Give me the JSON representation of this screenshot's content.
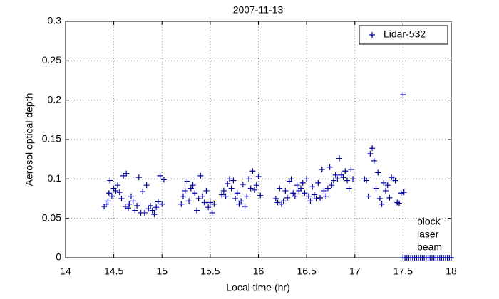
{
  "chart_data": {
    "type": "scatter",
    "title": "2007-11-13",
    "xlabel": "Local time (hr)",
    "ylabel": "Aerosol optical depth",
    "annotations": [
      "block",
      "laser",
      "beam"
    ],
    "xlim": [
      14,
      18
    ],
    "xticks": [
      14,
      14.5,
      15,
      15.5,
      16,
      16.5,
      17,
      17.5,
      18
    ],
    "ylim": [
      0,
      0.3
    ],
    "yticks": [
      0,
      0.05,
      0.1,
      0.15,
      0.2,
      0.25,
      0.3
    ],
    "grid": true,
    "legend": "upper right",
    "marker": "+",
    "series": [
      {
        "name": "Lidar-532",
        "color": "#0000a0",
        "x": [
          14.4,
          14.42,
          14.44,
          14.45,
          14.46,
          14.48,
          14.5,
          14.52,
          14.54,
          14.56,
          14.58,
          14.6,
          14.62,
          14.63,
          14.65,
          14.66,
          14.68,
          14.7,
          14.72,
          14.74,
          14.76,
          14.78,
          14.8,
          14.82,
          14.84,
          14.86,
          14.88,
          14.9,
          14.92,
          14.94,
          14.96,
          14.98,
          15.0,
          15.02,
          15.2,
          15.22,
          15.24,
          15.26,
          15.28,
          15.3,
          15.32,
          15.34,
          15.36,
          15.38,
          15.4,
          15.42,
          15.44,
          15.46,
          15.48,
          15.5,
          15.52,
          15.54,
          15.62,
          15.64,
          15.66,
          15.68,
          15.7,
          15.72,
          15.74,
          15.76,
          15.78,
          15.8,
          15.82,
          15.84,
          15.86,
          15.88,
          15.9,
          15.92,
          15.94,
          15.96,
          15.98,
          16.0,
          16.02,
          16.18,
          16.2,
          16.22,
          16.24,
          16.26,
          16.28,
          16.3,
          16.32,
          16.34,
          16.36,
          16.38,
          16.4,
          16.42,
          16.44,
          16.46,
          16.48,
          16.5,
          16.52,
          16.54,
          16.56,
          16.58,
          16.6,
          16.62,
          16.64,
          16.66,
          16.68,
          16.7,
          16.72,
          16.74,
          16.76,
          16.78,
          16.8,
          16.82,
          16.84,
          16.86,
          16.88,
          16.9,
          16.92,
          16.94,
          16.96,
          16.98,
          17.1,
          17.12,
          17.14,
          17.16,
          17.18,
          17.2,
          17.22,
          17.24,
          17.26,
          17.28,
          17.3,
          17.32,
          17.34,
          17.36,
          17.38,
          17.4,
          17.42,
          17.44,
          17.46,
          17.48,
          17.5,
          17.51,
          17.5,
          17.52,
          17.54,
          17.56,
          17.58,
          17.6,
          17.62,
          17.64,
          17.66,
          17.68,
          17.7,
          17.72,
          17.74,
          17.76,
          17.78,
          17.8,
          17.82,
          17.84,
          17.86,
          17.88,
          17.9,
          17.92,
          17.94,
          17.96,
          17.98,
          18.0
        ],
        "values": [
          0.065,
          0.068,
          0.072,
          0.082,
          0.098,
          0.078,
          0.088,
          0.085,
          0.092,
          0.083,
          0.075,
          0.104,
          0.065,
          0.107,
          0.063,
          0.068,
          0.078,
          0.072,
          0.06,
          0.066,
          0.102,
          0.057,
          0.084,
          0.057,
          0.092,
          0.062,
          0.066,
          0.06,
          0.055,
          0.064,
          0.071,
          0.104,
          0.068,
          0.099,
          0.068,
          0.078,
          0.085,
          0.097,
          0.072,
          0.088,
          0.092,
          0.082,
          0.06,
          0.075,
          0.104,
          0.078,
          0.07,
          0.085,
          0.064,
          0.07,
          0.057,
          0.068,
          0.08,
          0.085,
          0.078,
          0.094,
          0.1,
          0.088,
          0.098,
          0.075,
          0.082,
          0.068,
          0.072,
          0.093,
          0.065,
          0.078,
          0.1,
          0.088,
          0.11,
          0.086,
          0.092,
          0.103,
          0.079,
          0.075,
          0.07,
          0.088,
          0.068,
          0.072,
          0.085,
          0.076,
          0.097,
          0.1,
          0.082,
          0.078,
          0.092,
          0.085,
          0.088,
          0.095,
          0.082,
          0.1,
          0.078,
          0.072,
          0.09,
          0.08,
          0.075,
          0.095,
          0.076,
          0.112,
          0.085,
          0.078,
          0.088,
          0.115,
          0.092,
          0.098,
          0.105,
          0.1,
          0.126,
          0.105,
          0.102,
          0.11,
          0.098,
          0.088,
          0.112,
          0.1,
          0.1,
          0.098,
          0.078,
          0.132,
          0.139,
          0.123,
          0.088,
          0.108,
          0.075,
          0.068,
          0.095,
          0.085,
          0.092,
          0.076,
          0.102,
          0.1,
          0.098,
          0.07,
          0.069,
          0.082,
          0.207,
          0.083,
          0,
          0,
          0,
          0,
          0,
          0,
          0,
          0,
          0,
          0,
          0,
          0,
          0,
          0,
          0,
          0,
          0,
          0,
          0,
          0,
          0,
          0,
          0,
          0,
          0,
          0
        ]
      }
    ]
  }
}
